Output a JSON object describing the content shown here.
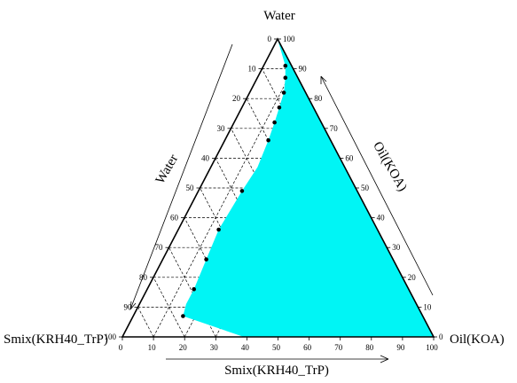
{
  "chart_data": {
    "type": "ternary",
    "vertices": {
      "top": "Water",
      "left": "Smix(KRH40_TrP)",
      "right": "Oil(KOA)"
    },
    "axis_titles": {
      "left_edge": "Water",
      "right_edge": "Oil(KOA)",
      "bottom_edge": "Smix(KRH40_TrP)"
    },
    "ticks": {
      "water": [
        "0",
        "10",
        "20",
        "30",
        "40",
        "50",
        "60",
        "70",
        "80",
        "90",
        "100"
      ],
      "oil": [
        "100",
        "90",
        "80",
        "70",
        "60",
        "50",
        "40",
        "30",
        "20",
        "10",
        "0"
      ],
      "smix": [
        "0",
        "10",
        "20",
        "30",
        "40",
        "50",
        "60",
        "70",
        "80",
        "90",
        "100"
      ]
    },
    "grid_step": 10,
    "region_color": "#00F5F5",
    "boundary_points": [
      {
        "water": 100,
        "oil": 0,
        "smix": 0
      },
      {
        "water": 91,
        "oil": 7,
        "smix": 2
      },
      {
        "water": 87,
        "oil": 9,
        "smix": 4
      },
      {
        "water": 82,
        "oil": 11,
        "smix": 7
      },
      {
        "water": 77,
        "oil": 12,
        "smix": 11
      },
      {
        "water": 72,
        "oil": 13,
        "smix": 15
      },
      {
        "water": 66,
        "oil": 14,
        "smix": 20
      },
      {
        "water": 57,
        "oil": 15,
        "smix": 28
      },
      {
        "water": 49,
        "oil": 14,
        "smix": 37
      },
      {
        "water": 36,
        "oil": 13,
        "smix": 51
      },
      {
        "water": 26,
        "oil": 14,
        "smix": 60
      },
      {
        "water": 16,
        "oil": 15,
        "smix": 69
      },
      {
        "water": 11,
        "oil": 15,
        "smix": 74
      },
      {
        "water": 7,
        "oil": 16,
        "smix": 77
      },
      {
        "water": 0,
        "oil": 39,
        "smix": 61
      }
    ],
    "marked_points": [
      {
        "water": 91,
        "oil": 7,
        "smix": 2
      },
      {
        "water": 87,
        "oil": 9,
        "smix": 4
      },
      {
        "water": 82,
        "oil": 11,
        "smix": 7
      },
      {
        "water": 77,
        "oil": 12,
        "smix": 11
      },
      {
        "water": 72,
        "oil": 13,
        "smix": 15
      },
      {
        "water": 66,
        "oil": 14,
        "smix": 20
      },
      {
        "water": 49,
        "oil": 14,
        "smix": 37
      },
      {
        "water": 36,
        "oil": 13,
        "smix": 51
      },
      {
        "water": 26,
        "oil": 14,
        "smix": 60
      },
      {
        "water": 16,
        "oil": 15,
        "smix": 69
      },
      {
        "water": 7,
        "oil": 16,
        "smix": 77
      }
    ],
    "grid": true,
    "legend": "none"
  }
}
